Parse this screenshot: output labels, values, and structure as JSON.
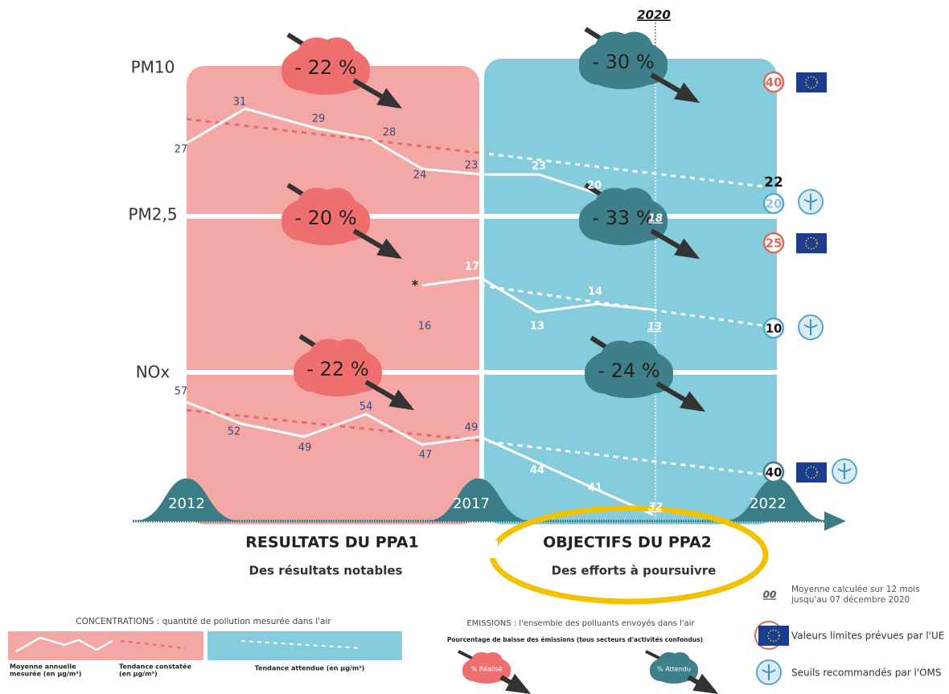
{
  "year_marker": "2020",
  "rows": [
    {
      "name": "PM10",
      "ppa1_reduction": "- 22 %",
      "ppa2_reduction": "- 30 %",
      "measured": [
        27,
        31,
        29,
        28,
        24,
        23
      ],
      "ppa2_values": [
        23,
        20,
        18
      ],
      "eu_limit": 40,
      "target": 22,
      "who_threshold": 20
    },
    {
      "name": "PM2,5",
      "ppa1_reduction": "- 20 %",
      "ppa2_reduction": "- 33 %",
      "note": "*",
      "measured": [
        16,
        17
      ],
      "ppa2_values": [
        13,
        14,
        13
      ],
      "eu_limit": 25,
      "who_threshold": 10
    },
    {
      "name": "NOx",
      "ppa1_reduction": "- 22 %",
      "ppa2_reduction": "- 24 %",
      "measured": [
        57,
        52,
        49,
        54,
        47,
        49
      ],
      "ppa2_values": [
        44,
        41,
        32
      ],
      "limit": 40
    }
  ],
  "years": [
    "2012",
    "2017",
    "2022"
  ],
  "sections": [
    {
      "title": "RESULTATS DU PPA1",
      "subtitle": "Des résultats notables"
    },
    {
      "title": "OBJECTIFS DU PPA2",
      "subtitle": "Des efforts à poursuivre"
    }
  ],
  "legend": {
    "average_marker": "00",
    "average_text": [
      "Moyenne calculée sur 12 mois",
      "jusqu'au 07 décembre 2020"
    ],
    "concentrations": "CONCENTRATIONS : quantité de pollution mesurée dans l'air",
    "measured": [
      "Moyenne annuelle",
      "mesurée (en µg/m³)"
    ],
    "observed_trend": [
      "Tendance constatée",
      "(en µg/m³)"
    ],
    "expected_trend": "Tendance attendue (en µg/m³)",
    "emissions": "EMISSIONS : l'ensemble des polluants envoyés dans l'air",
    "emissions_sub": "Pourcentage de baisse des émissions (tous secteurs d'activités confondus)",
    "achieved": "% Réalisé",
    "expected": "% Attendu",
    "eu": "Valeurs limites prévues par l'UE",
    "who": "Seuils recommandés par l'OMS"
  }
}
